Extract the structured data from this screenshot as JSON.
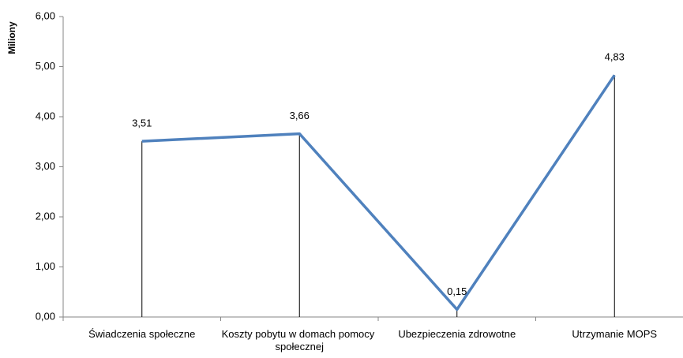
{
  "chart_data": {
    "type": "line",
    "y_label": "Miliony",
    "categories": [
      "Świadczenia społeczne",
      "Koszty pobytu w domach pomocy  społecznej",
      "Ubezpieczenia zdrowotne",
      "Utrzymanie MOPS"
    ],
    "series": [
      {
        "name": null,
        "color": "#4f81bd",
        "values": [
          3.51,
          3.66,
          0.15,
          4.83
        ],
        "value_labels": [
          "3,51",
          "3,66",
          "0,15",
          "4,83"
        ]
      }
    ],
    "ylim": [
      0,
      6
    ],
    "yticks": [
      {
        "value": 0,
        "label": "0,00"
      },
      {
        "value": 1,
        "label": "1,00"
      },
      {
        "value": 2,
        "label": "2,00"
      },
      {
        "value": 3,
        "label": "3,00"
      },
      {
        "value": 4,
        "label": "4,00"
      },
      {
        "value": 5,
        "label": "5,00"
      },
      {
        "value": 6,
        "label": "6,00"
      }
    ],
    "drop_lines": true
  }
}
